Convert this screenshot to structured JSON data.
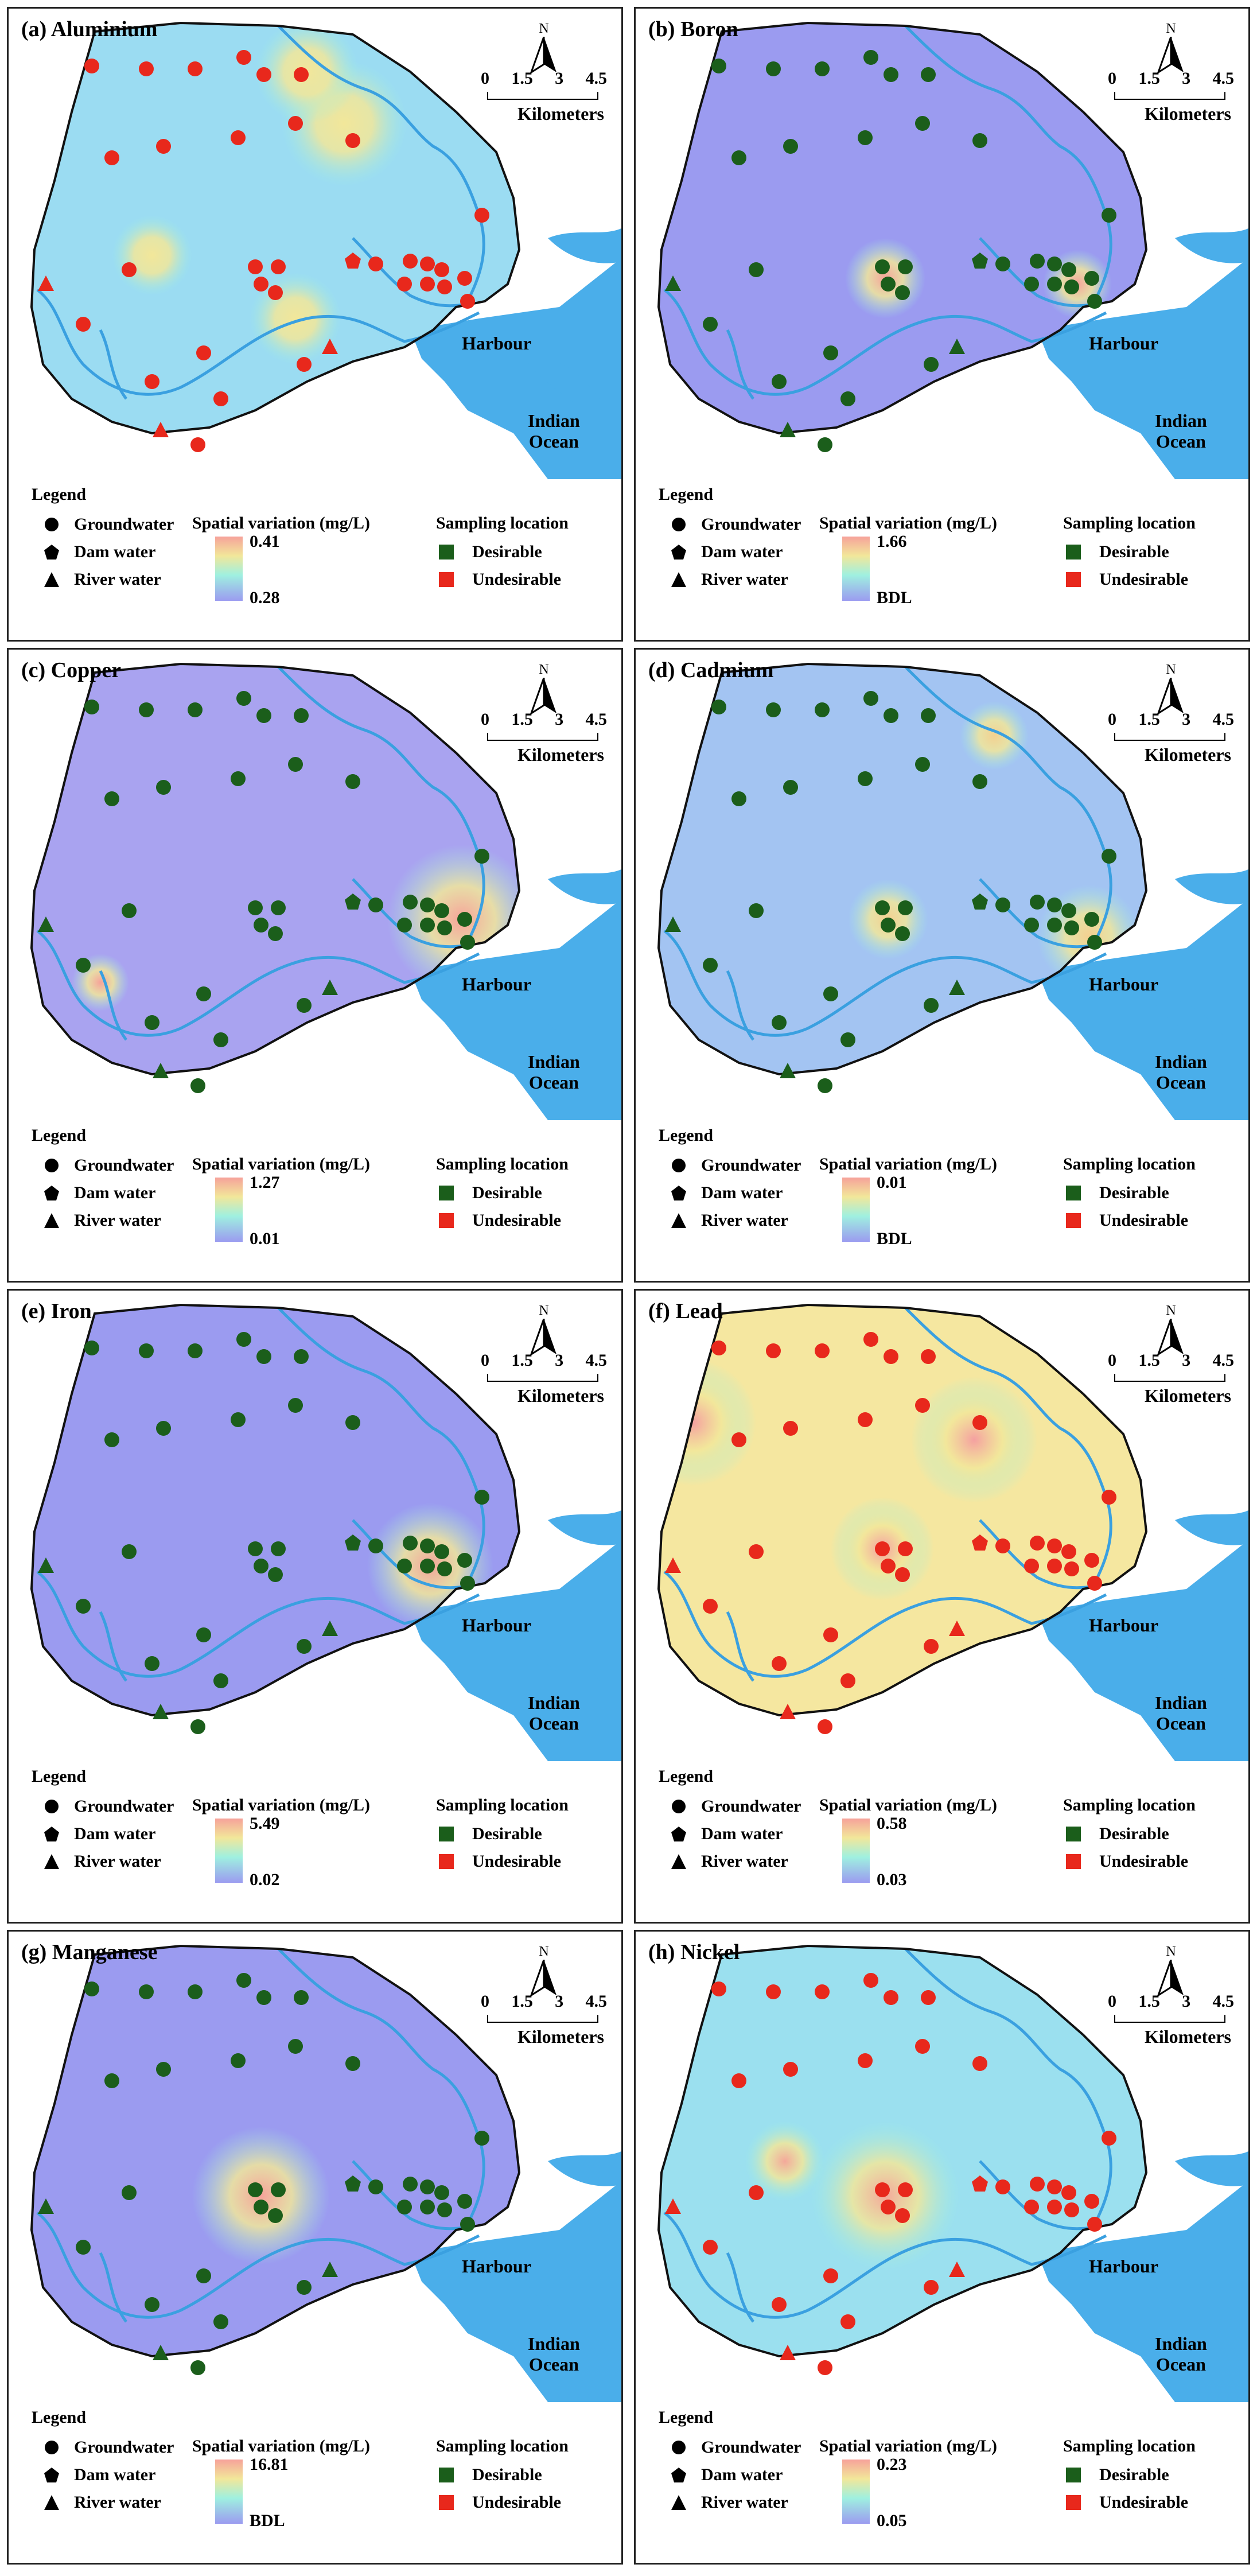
{
  "panels": [
    {
      "label": "(a) Aluminium",
      "max": "0.41",
      "min": "0.28",
      "base": "#9bdcf2",
      "status": "undesirable"
    },
    {
      "label": "(b) Boron",
      "max": "1.66",
      "min": "BDL",
      "base": "#9b9bf0",
      "status": "desirable"
    },
    {
      "label": "(c) Copper",
      "max": "1.27",
      "min": "0.01",
      "base": "#a9a3f0",
      "status": "desirable"
    },
    {
      "label": "(d) Cadmium",
      "max": "0.01",
      "min": "BDL",
      "base": "#a3c4f2",
      "status": "desirable"
    },
    {
      "label": "(e) Iron",
      "max": "5.49",
      "min": "0.02",
      "base": "#9b9bf0",
      "status": "desirable"
    },
    {
      "label": "(f) Lead",
      "max": "0.58",
      "min": "0.03",
      "base": "#f5e7a0",
      "status": "undesirable"
    },
    {
      "label": "(g) Manganese",
      "max": "16.81",
      "min": "BDL",
      "base": "#9b9bf0",
      "status": "desirable"
    },
    {
      "label": "(h) Nickel",
      "max": "0.23",
      "min": "0.05",
      "base": "#9be0ef",
      "status": "undesirable"
    }
  ],
  "common": {
    "north": "N",
    "scale": [
      "0",
      "1.5",
      "3",
      "4.5"
    ],
    "scale_unit": "Kilometers",
    "harbour": "Harbour",
    "ocean_line1": "Indian",
    "ocean_line2": "Ocean",
    "legend_title": "Legend",
    "legend_items": [
      "Groundwater",
      "Dam water",
      "River water"
    ],
    "spatial_variation_title": "Spatial variation (mg/L)",
    "sampling_title": "Sampling location",
    "sampling_items": [
      "Desirable",
      "Undesirable"
    ]
  },
  "colors": {
    "desirable": "#1b5e1b",
    "undesirable": "#e8281c",
    "river": "#3aa0e0",
    "sea": "#4aaeea"
  }
}
